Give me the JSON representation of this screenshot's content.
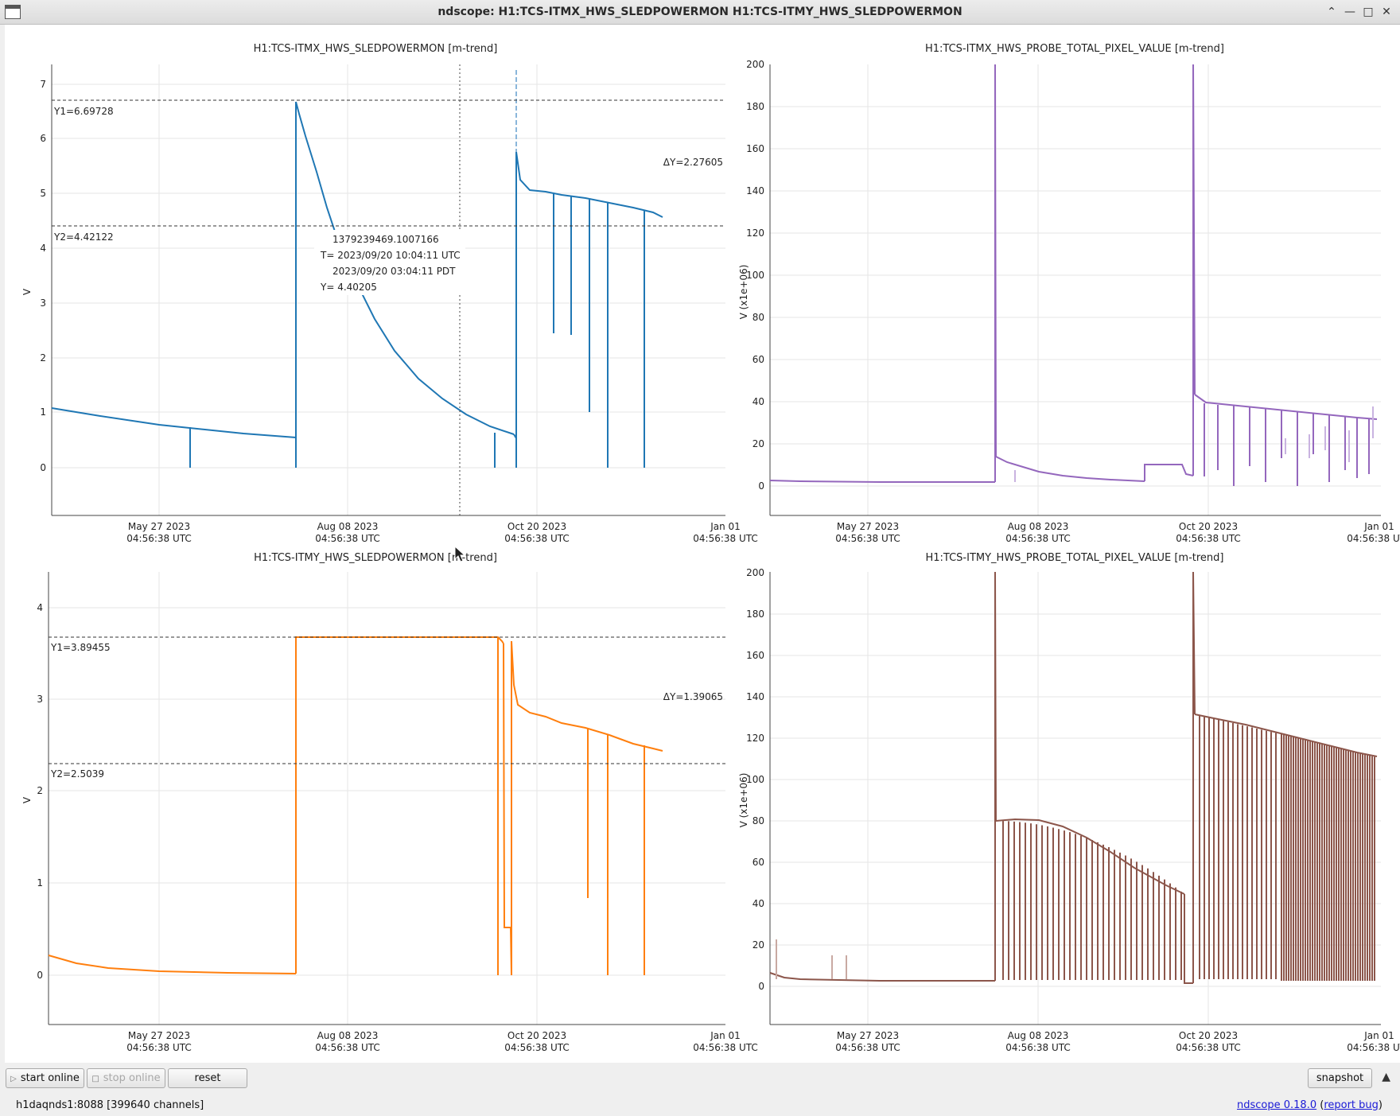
{
  "window": {
    "title": "ndscope: H1:TCS-ITMX_HWS_SLEDPOWERMON H1:TCS-ITMY_HWS_SLEDPOWERMON",
    "controls": [
      "minimize-icon",
      "maximize-icon",
      "close-icon"
    ]
  },
  "colors": {
    "tl": "#1f77b4",
    "tr": "#9467bd",
    "bl": "#ff7f0e",
    "br": "#8c564b"
  },
  "xaxis": {
    "ticks": [
      {
        "date": "May 27 2023",
        "time": "04:56:38 UTC"
      },
      {
        "date": "Aug 08 2023",
        "time": "04:56:38 UTC"
      },
      {
        "date": "Oct 20 2023",
        "time": "04:56:38 UTC"
      },
      {
        "date": "Jan 01",
        "time": "04:56:38 UTC"
      }
    ]
  },
  "plots": {
    "tl": {
      "title": "H1:TCS-ITMX_HWS_SLEDPOWERMON [m-trend]",
      "ylabel": "V",
      "yticks": [
        "0",
        "1",
        "2",
        "3",
        "4",
        "5",
        "6",
        "7"
      ],
      "cursor_y1": "Y1=6.69728",
      "cursor_y2": "Y2=4.42122",
      "cursor_dy": "ΔY=2.27605",
      "tooltip": {
        "gps": "1379239469.1007166",
        "t_utc": "T= 2023/09/20 10:04:11 UTC",
        "t_pdt": "2023/09/20 03:04:11 PDT",
        "y": "Y= 4.40205"
      }
    },
    "tr": {
      "title": "H1:TCS-ITMX_HWS_PROBE_TOTAL_PIXEL_VALUE [m-trend]",
      "ylabel": "V (x1e+06)",
      "yticks": [
        "0",
        "20",
        "40",
        "60",
        "80",
        "100",
        "120",
        "140",
        "160",
        "180",
        "200"
      ]
    },
    "bl": {
      "title": "H1:TCS-ITMY_HWS_SLEDPOWERMON [m-trend]",
      "ylabel": "V",
      "yticks": [
        "0",
        "1",
        "2",
        "3",
        "4"
      ],
      "cursor_y1": "Y1=3.89455",
      "cursor_y2": "Y2=2.5039",
      "cursor_dy": "ΔY=1.39065"
    },
    "br": {
      "title": "H1:TCS-ITMY_HWS_PROBE_TOTAL_PIXEL_VALUE [m-trend]",
      "ylabel": "V (x1e+06)",
      "yticks": [
        "0",
        "20",
        "40",
        "60",
        "80",
        "100",
        "120",
        "140",
        "160",
        "180",
        "200"
      ]
    }
  },
  "toolbar": {
    "start_online": "start online",
    "stop_online": "stop online",
    "reset": "reset",
    "snapshot": "snapshot"
  },
  "status": {
    "server": "h1daqnds1:8088  [399640 channels]",
    "version_link": "ndscope 0.18.0",
    "report_bug": "report bug"
  }
}
